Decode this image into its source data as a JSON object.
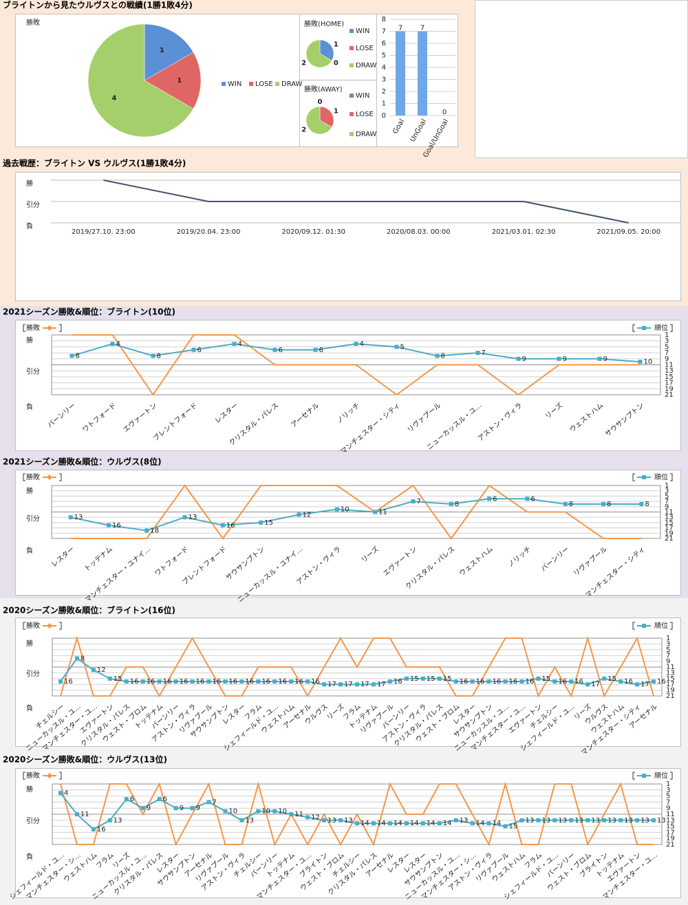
{
  "sections": [
    {
      "title": "ブライトンから見たウルヴスとの戦績(1勝1敗4分)"
    },
    {
      "title": "過去戦歴：ブライトン VS ウルヴス(1勝1敗4分)"
    },
    {
      "title": "2021シーズン勝敗&順位：ブライトン(10位)"
    },
    {
      "title": "2021シーズン勝敗&順位：ウルヴス(8位)"
    },
    {
      "title": "2020シーズン勝敗&順位：ブライトン(16位)"
    },
    {
      "title": "2020シーズン勝敗&順位：ウルヴス(13位)"
    }
  ],
  "chart_data": [
    {
      "type": "pie",
      "title": "勝敗",
      "categories": [
        "WIN",
        "LOSE",
        "DRAW"
      ],
      "values": [
        1,
        1,
        4
      ],
      "colors": [
        "#5b8fd6",
        "#e06666",
        "#a5cf6a"
      ]
    },
    {
      "type": "pie",
      "title": "勝敗(HOME)",
      "categories": [
        "WIN",
        "LOSE",
        "DRAW"
      ],
      "values": [
        1,
        0,
        2
      ],
      "colors": [
        "#5b8fd6",
        "#e06666",
        "#a5cf6a"
      ]
    },
    {
      "type": "pie",
      "title": "勝敗(AWAY)",
      "categories": [
        "WIN",
        "LOSE",
        "DRAW"
      ],
      "values": [
        0,
        1,
        2
      ],
      "colors": [
        "#5b8fd6",
        "#e06666",
        "#a5cf6a"
      ]
    },
    {
      "type": "bar",
      "categories": [
        "Goal",
        "UnGoal",
        "Goal/UnGoal"
      ],
      "values": [
        7,
        7,
        0
      ],
      "color": "#6fa8e8",
      "ylim": [
        0,
        8
      ],
      "yticks": [
        0,
        1,
        2,
        3,
        4,
        5,
        6,
        7,
        8
      ],
      "grid": true
    },
    {
      "type": "line",
      "categories": [
        "2019/27.10. 23:00",
        "2019/20.04. 23:00",
        "2020/09.12. 01:30",
        "2020/08.03. 00:00",
        "2021/03.01. 02:30",
        "2021/09.05. 20:00"
      ],
      "values": [
        1,
        0,
        0,
        0,
        0,
        -1
      ],
      "color": "#44546a",
      "ylim": [
        -1,
        1
      ],
      "yticks": [
        {
          "value": 1,
          "label": "勝"
        },
        {
          "value": 0,
          "label": "引分"
        },
        {
          "value": -1,
          "label": "負"
        }
      ],
      "grid": true
    },
    {
      "type": "combo",
      "categories": [
        "バーンリー",
        "ワトフォード",
        "エヴァートン",
        "ブレントフォード",
        "レスター",
        "クリスタル・パレス",
        "アーセナル",
        "ノリッチ",
        "マンチェスター・シティ",
        "リヴァプール",
        "ニューカッスル・ユ…",
        "アストン・ヴィラ",
        "リーズ",
        "ウェストハム",
        "サウサンプトン"
      ],
      "series": [
        {
          "name": "勝敗",
          "color": "#f79646",
          "values": [
            1,
            1,
            -1,
            1,
            1,
            0,
            0,
            0,
            -1,
            0,
            0,
            -1,
            0,
            0,
            0
          ]
        },
        {
          "name": "順位",
          "color": "#4bacc6",
          "axis": "y2",
          "values": [
            8,
            4,
            8,
            6,
            4,
            6,
            6,
            4,
            5,
            8,
            7,
            9,
            9,
            9,
            10
          ]
        }
      ],
      "ylim": [
        -1,
        1
      ],
      "yticks": [
        {
          "value": 1,
          "label": "勝"
        },
        {
          "value": 0,
          "label": "引分"
        },
        {
          "value": -1,
          "label": "負"
        }
      ],
      "y2lim": [
        21,
        1
      ],
      "y2ticks": [
        1,
        3,
        5,
        7,
        9,
        11,
        13,
        15,
        17,
        19,
        21
      ],
      "grid": true
    },
    {
      "type": "combo",
      "categories": [
        "レスター",
        "トッテナム",
        "マンチェスター・ユナイ…",
        "ワトフォード",
        "ブレントフォード",
        "サウサンプトン",
        "ニューカッスル・ユナイ…",
        "アストン・ヴィラ",
        "リーズ",
        "エヴァートン",
        "クリスタル・パレス",
        "ウェストハム",
        "ノリッチ",
        "バーンリー",
        "リヴァプール",
        "マンチェスター・シティ"
      ],
      "series": [
        {
          "name": "勝敗",
          "color": "#f79646",
          "values": [
            -1,
            -1,
            -1,
            1,
            -1,
            1,
            1,
            1,
            0,
            1,
            -1,
            1,
            0,
            0,
            -1,
            -1
          ]
        },
        {
          "name": "順位",
          "color": "#4bacc6",
          "axis": "y2",
          "values": [
            13,
            16,
            18,
            13,
            16,
            15,
            12,
            10,
            11,
            7,
            8,
            6,
            6,
            8,
            8,
            8
          ]
        }
      ],
      "ylim": [
        -1,
        1
      ],
      "yticks": [
        {
          "value": 1,
          "label": "勝"
        },
        {
          "value": 0,
          "label": "引分"
        },
        {
          "value": -1,
          "label": "負"
        }
      ],
      "y2lim": [
        21,
        1
      ],
      "y2ticks": [
        1,
        3,
        5,
        7,
        9,
        11,
        13,
        15,
        17,
        19,
        21
      ],
      "grid": true
    },
    {
      "type": "combo",
      "categories": [
        "チェルシー",
        "ニューカッスル・ユ…",
        "マンチェスター・ユ…",
        "エヴァートン",
        "クリスタル・パレス",
        "ウェスト・ブロム",
        "トッテナム",
        "バーンリー",
        "アストン・ヴィラ",
        "リヴァプール",
        "サウサンプトン",
        "レスター",
        "フラム",
        "シェフィールド・ユ…",
        "ウェストハム",
        "アーセナル",
        "ウルヴス",
        "リーズ",
        "フラム",
        "トッテナム",
        "リヴァプール",
        "バーンリー",
        "アストン・ヴィラ",
        "クリスタル・パレス",
        "ウェスト・ブロム",
        "レスター",
        "サウサンプトン",
        "ニューカッスル・ユ…",
        "マンチェスター・ユ…",
        "エヴァートン",
        "チェルシー",
        "シェフィールド・ユ…",
        "リーズ",
        "ウルヴス",
        "ウェストハム",
        "マンチェスター・シティ",
        "アーセナル"
      ],
      "series": [
        {
          "name": "勝敗",
          "color": "#f79646",
          "values": [
            -1,
            1,
            -1,
            -1,
            0,
            0,
            -1,
            0,
            1,
            0,
            -1,
            -1,
            0,
            0,
            0,
            -1,
            0,
            1,
            0,
            1,
            1,
            0,
            0,
            0,
            -1,
            -1,
            0,
            1,
            1,
            -1,
            0,
            -1,
            1,
            -1,
            0,
            1,
            -1
          ]
        },
        {
          "name": "順位",
          "color": "#4bacc6",
          "axis": "y2",
          "values": [
            16,
            8,
            12,
            15,
            16,
            16,
            16,
            16,
            16,
            16,
            16,
            16,
            16,
            16,
            16,
            16,
            17,
            17,
            17,
            17,
            16,
            15,
            15,
            15,
            16,
            16,
            16,
            16,
            16,
            15,
            16,
            16,
            17,
            15,
            16,
            17,
            16
          ]
        }
      ],
      "ylim": [
        -1,
        1
      ],
      "yticks": [
        {
          "value": 1,
          "label": "勝"
        },
        {
          "value": 0,
          "label": "引分"
        },
        {
          "value": -1,
          "label": "負"
        }
      ],
      "y2lim": [
        21,
        1
      ],
      "y2ticks": [
        1,
        3,
        5,
        7,
        9,
        11,
        13,
        15,
        17,
        19,
        21
      ],
      "grid": true
    },
    {
      "type": "combo",
      "categories": [
        "シェフィールド・ユ…",
        "マンチェスター・シ…",
        "ウェストハム",
        "フラム",
        "リーズ",
        "ニューカッスル・ユ…",
        "クリスタル・パレス",
        "レスター",
        "サウサンプトン",
        "アーセナル",
        "リヴァプール",
        "アストン・ヴィラ",
        "チェルシー",
        "バーンリー",
        "トッテナム",
        "マンチェスター・ユ…",
        "ブライトン",
        "ウェスト・ブロム",
        "チェルシー",
        "クリスタル・パレス",
        "アーセナル",
        "レスター",
        "レスター",
        "サウサンプトン",
        "ニューカッスル・ユ…",
        "マンチェスター・シ…",
        "アストン・ヴィラ",
        "リヴァプール",
        "ウェストハム",
        "フラム",
        "シェフィールド・ユ…",
        "バーンリー",
        "ウェスト・ブロム",
        "ブライトン",
        "トッテナム",
        "エヴァートン",
        "マンチェスター・ユ…"
      ],
      "series": [
        {
          "name": "勝敗",
          "color": "#f79646",
          "values": [
            1,
            -1,
            -1,
            1,
            1,
            0,
            1,
            -1,
            0,
            1,
            -1,
            -1,
            1,
            -1,
            0,
            -1,
            0,
            -1,
            0,
            -1,
            1,
            0,
            0,
            1,
            1,
            0,
            -1,
            1,
            -1,
            -1,
            1,
            1,
            -1,
            0,
            1,
            -1,
            -1
          ]
        },
        {
          "name": "順位",
          "color": "#4bacc6",
          "axis": "y2",
          "values": [
            4,
            11,
            16,
            13,
            6,
            9,
            6,
            9,
            9,
            7,
            10,
            13,
            10,
            10,
            11,
            12,
            13,
            13,
            14,
            14,
            14,
            14,
            14,
            14,
            13,
            14,
            14,
            15,
            13,
            13,
            13,
            13,
            13,
            13,
            13,
            13,
            13
          ]
        }
      ],
      "ylim": [
        -1,
        1
      ],
      "yticks": [
        {
          "value": 1,
          "label": "勝"
        },
        {
          "value": 0,
          "label": "引分"
        },
        {
          "value": -1,
          "label": "負"
        }
      ],
      "y2lim": [
        21,
        1
      ],
      "y2ticks": [
        1,
        3,
        5,
        7,
        9,
        11,
        13,
        15,
        17,
        19,
        21
      ],
      "grid": true
    }
  ]
}
